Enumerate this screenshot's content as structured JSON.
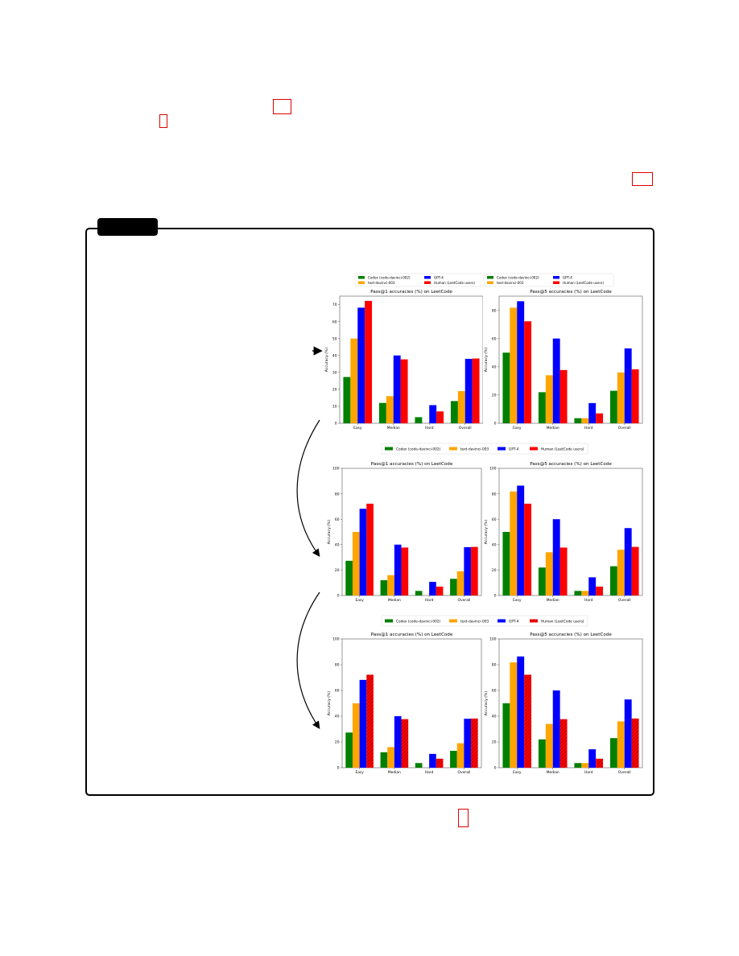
{
  "colors": {
    "codex": "#008000",
    "davinci": "#ffa500",
    "gpt4": "#0000ff",
    "human": "#ff0000",
    "annotation_red": "#e00000",
    "panel_border": "#000000"
  },
  "chart_data": [
    {
      "type": "bar",
      "title": "Pass@1 accuracies (%) on LeetCode",
      "ylabel": "Accuracy (%)",
      "categories": [
        "Easy",
        "Median",
        "Hard",
        "Overall"
      ],
      "ylim": [
        0,
        75
      ],
      "yticks": [
        0,
        10,
        20,
        30,
        40,
        50,
        60,
        70
      ],
      "series": [
        {
          "name": "Codex (code-davinci-002)",
          "values": [
            27.3,
            12.0,
            3.6,
            13.1
          ]
        },
        {
          "name": "text-davinci-003",
          "values": [
            50.0,
            16.0,
            0.0,
            19.0
          ]
        },
        {
          "name": "GPT-4",
          "values": [
            68.2,
            40.0,
            10.7,
            38.0
          ]
        },
        {
          "name": "Human (LeetCode users)",
          "values": [
            72.2,
            37.7,
            7.0,
            38.2
          ]
        }
      ],
      "legend": "top, 2 columns",
      "grid": false
    },
    {
      "type": "bar",
      "title": "Pass@5 accuracies (%) on LeetCode",
      "ylabel": "Accuracy (%)",
      "categories": [
        "Easy",
        "Median",
        "Hard",
        "Overall"
      ],
      "ylim": [
        0,
        90
      ],
      "yticks": [
        0,
        20,
        40,
        60,
        80
      ],
      "series": [
        {
          "name": "Codex (code-davinci-002)",
          "values": [
            50.0,
            22.0,
            3.6,
            23.0
          ]
        },
        {
          "name": "text-davinci-003",
          "values": [
            81.8,
            34.0,
            3.6,
            36.0
          ]
        },
        {
          "name": "GPT-4",
          "values": [
            86.4,
            60.0,
            14.3,
            53.0
          ]
        },
        {
          "name": "Human (LeetCode users)",
          "values": [
            72.2,
            37.7,
            7.0,
            38.2
          ]
        }
      ],
      "legend": "top, 2 columns",
      "grid": false
    },
    {
      "type": "bar",
      "title": "Pass@1 accuracies (%) on LeetCode",
      "ylabel": "Accuracy (%)",
      "categories": [
        "Easy",
        "Median",
        "Hard",
        "Overall"
      ],
      "ylim": [
        0,
        100
      ],
      "yticks": [
        0,
        20,
        40,
        60,
        80,
        100
      ],
      "series": [
        {
          "name": "Codex (code-davinci-002)",
          "values": [
            27.3,
            12.0,
            3.6,
            13.1
          ]
        },
        {
          "name": "text-davinci-003",
          "values": [
            50.0,
            16.0,
            0.0,
            19.0
          ]
        },
        {
          "name": "GPT-4",
          "values": [
            68.2,
            40.0,
            10.7,
            38.0
          ]
        },
        {
          "name": "Human (LeetCode users)",
          "values": [
            72.2,
            37.7,
            7.0,
            38.2
          ]
        }
      ],
      "legend": "top, 1 row shared",
      "grid": false
    },
    {
      "type": "bar",
      "title": "Pass@5 accuracies (%) on LeetCode",
      "ylabel": "Accuracy (%)",
      "categories": [
        "Easy",
        "Median",
        "Hard",
        "Overall"
      ],
      "ylim": [
        0,
        100
      ],
      "yticks": [
        0,
        20,
        40,
        60,
        80,
        100
      ],
      "series": [
        {
          "name": "Codex (code-davinci-002)",
          "values": [
            50.0,
            22.0,
            3.6,
            23.0
          ]
        },
        {
          "name": "text-davinci-003",
          "values": [
            81.8,
            34.0,
            3.6,
            36.0
          ]
        },
        {
          "name": "GPT-4",
          "values": [
            86.4,
            60.0,
            14.3,
            53.0
          ]
        },
        {
          "name": "Human (LeetCode users)",
          "values": [
            72.2,
            37.7,
            7.0,
            38.2
          ]
        }
      ],
      "legend": "top, 1 row shared",
      "grid": false
    },
    {
      "type": "bar",
      "title": "Pass@1 accuracies (%) on LeetCode",
      "ylabel": "Accuracy (%)",
      "categories": [
        "Easy",
        "Median",
        "Hard",
        "Overall"
      ],
      "ylim": [
        0,
        100
      ],
      "yticks": [
        0,
        20,
        40,
        60,
        80,
        100
      ],
      "series": [
        {
          "name": "Codex (code-davinci-002)",
          "values": [
            27.3,
            12.0,
            3.6,
            13.1
          ]
        },
        {
          "name": "text-davinci-003",
          "values": [
            50.0,
            16.0,
            0.0,
            19.0
          ]
        },
        {
          "name": "GPT-4",
          "values": [
            68.2,
            40.0,
            10.7,
            38.0
          ]
        },
        {
          "name": "Human (LeetCode users)",
          "values": [
            72.2,
            37.7,
            7.0,
            38.2
          ],
          "hatched": true
        }
      ],
      "legend": "top, 1 row shared",
      "grid": false
    },
    {
      "type": "bar",
      "title": "Pass@5 accuracies (%) on LeetCode",
      "ylabel": "Accuracy (%)",
      "categories": [
        "Easy",
        "Median",
        "Hard",
        "Overall"
      ],
      "ylim": [
        0,
        100
      ],
      "yticks": [
        0,
        20,
        40,
        60,
        80,
        100
      ],
      "series": [
        {
          "name": "Codex (code-davinci-002)",
          "values": [
            50.0,
            22.0,
            3.6,
            23.0
          ]
        },
        {
          "name": "text-davinci-003",
          "values": [
            81.8,
            34.0,
            3.6,
            36.0
          ]
        },
        {
          "name": "GPT-4",
          "values": [
            86.4,
            60.0,
            14.3,
            53.0
          ]
        },
        {
          "name": "Human (LeetCode users)",
          "values": [
            72.2,
            37.7,
            7.0,
            38.2
          ],
          "hatched": true
        }
      ],
      "legend": "top, 1 row shared",
      "grid": false
    }
  ]
}
